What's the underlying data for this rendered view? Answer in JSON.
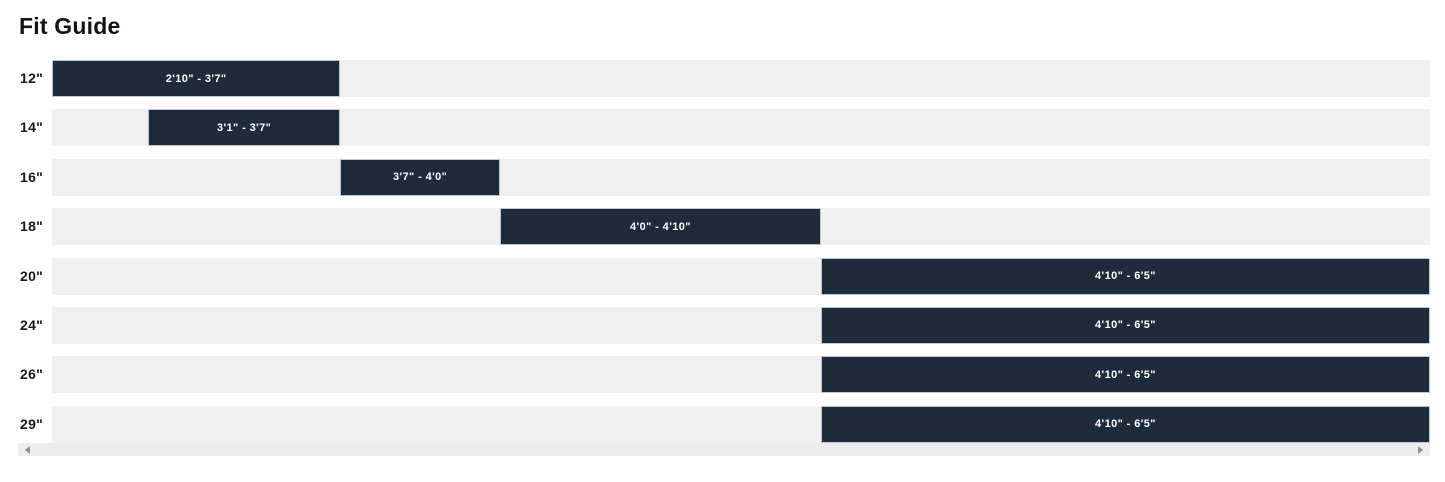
{
  "page": {
    "title": "Fit Guide"
  },
  "colors": {
    "bar": "#1e2b3a",
    "track": "#f0f0f0",
    "bar_text": "#ffffff",
    "label_text": "#16191d"
  },
  "chart_data": {
    "type": "bar",
    "orientation": "horizontal",
    "title": "Fit Guide",
    "categories": [
      "12\"",
      "14\"",
      "16\"",
      "18\"",
      "20\"",
      "24\"",
      "26\"",
      "29\""
    ],
    "x_domain_labels": [
      "2'10\"",
      "6'5\""
    ],
    "x_domain_inches": [
      34,
      77
    ],
    "grid": false,
    "legend": false,
    "rows": [
      {
        "size": "12\"",
        "range": "2'10\" - 3'7\"",
        "height_min_in": 34,
        "height_max_in": 43,
        "start_pct": 0,
        "end_pct": 20.92
      },
      {
        "size": "14\"",
        "range": "3'1\" - 3'7\"",
        "height_min_in": 37,
        "height_max_in": 43,
        "start_pct": 6.97,
        "end_pct": 20.92
      },
      {
        "size": "16\"",
        "range": "3'7\" - 4'0\"",
        "height_min_in": 43,
        "height_max_in": 48,
        "start_pct": 20.92,
        "end_pct": 32.51
      },
      {
        "size": "18\"",
        "range": "4'0\" - 4'10\"",
        "height_min_in": 48,
        "height_max_in": 58,
        "start_pct": 32.51,
        "end_pct": 55.8
      },
      {
        "size": "20\"",
        "range": "4'10\" - 6'5\"",
        "height_min_in": 58,
        "height_max_in": 77,
        "start_pct": 55.8,
        "end_pct": 100
      },
      {
        "size": "24\"",
        "range": "4'10\" - 6'5\"",
        "height_min_in": 58,
        "height_max_in": 77,
        "start_pct": 55.8,
        "end_pct": 100
      },
      {
        "size": "26\"",
        "range": "4'10\" - 6'5\"",
        "height_min_in": 58,
        "height_max_in": 77,
        "start_pct": 55.8,
        "end_pct": 100
      },
      {
        "size": "29\"",
        "range": "4'10\" - 6'5\"",
        "height_min_in": 58,
        "height_max_in": 77,
        "start_pct": 55.8,
        "end_pct": 100
      }
    ]
  },
  "scrollbar": {
    "orientation": "horizontal",
    "left_arrow_icon": "left-triangle",
    "right_arrow_icon": "right-triangle"
  }
}
